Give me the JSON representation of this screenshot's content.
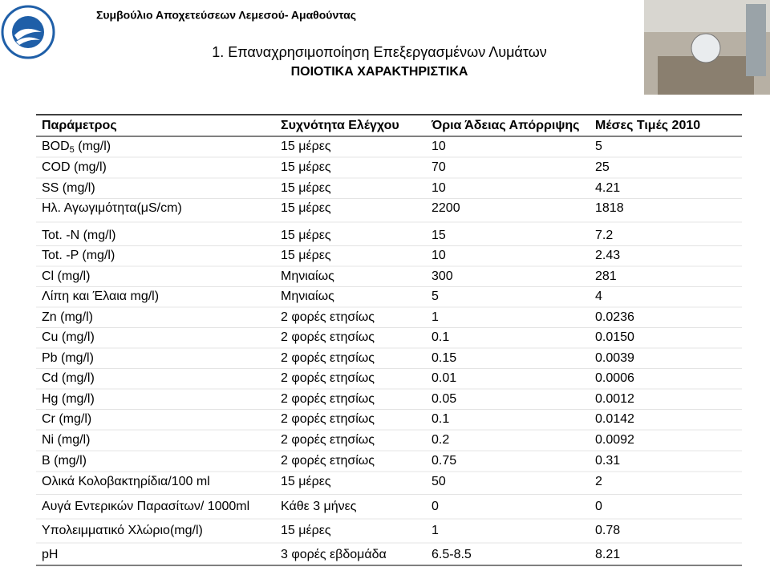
{
  "header": {
    "org": "Συμβούλιο Αποχετεύσεων Λεμεσού- Αμαθούντας",
    "title": "1. Επαναχρησιμοποίηση Επεξεργασμένων Λυμάτων",
    "subtitle": "ΠΟΙΟΤΙΚΑ ΧΑΡΑΚΤΗΡΙΣΤΙΚΑ"
  },
  "table": {
    "columns": [
      "Παράμετρος",
      "Συχνότητα Ελέγχου",
      "Όρια Άδειας Απόρριψης",
      "Μέσες Τιμές 2010"
    ],
    "rows": [
      [
        {
          "text": "BOD",
          "sub": "5",
          "after": " (mg/l)"
        },
        "15 μέρες",
        "10",
        "5"
      ],
      [
        "COD (mg/l)",
        "15 μέρες",
        "70",
        "25"
      ],
      [
        "SS (mg/l)",
        "15 μέρες",
        "10",
        "4.21"
      ],
      [
        "Ηλ. Αγωγιμότητα(μS/cm)",
        "15 μέρες",
        "2200",
        "1818"
      ],
      [
        "Tot. -N (mg/l)",
        "15 μέρες",
        "15",
        "7.2"
      ],
      [
        "Tot. -P (mg/l)",
        "15 μέρες",
        "10",
        "2.43"
      ],
      [
        "Cl (mg/l)",
        "Μηνιαίως",
        "300",
        "281"
      ],
      [
        "Λίπη και Έλαια mg/l)",
        "Μηνιαίως",
        "5",
        "4"
      ],
      [
        "Zn (mg/l)",
        "2 φορές ετησίως",
        "1",
        "0.0236"
      ],
      [
        "Cu (mg/l)",
        "2 φορές ετησίως",
        "0.1",
        "0.0150"
      ],
      [
        "Pb  (mg/l)",
        "2 φορές ετησίως",
        "0.15",
        "0.0039"
      ],
      [
        "Cd  (mg/l)",
        "2 φορές ετησίως",
        "0.01",
        "0.0006"
      ],
      [
        "Hg  (mg/l)",
        "2 φορές ετησίως",
        "0.05",
        "0.0012"
      ],
      [
        "Cr (mg/l)",
        "2 φορές ετησίως",
        "0.1",
        "0.0142"
      ],
      [
        "Ni  (mg/l)",
        "2 φορές ετησίως",
        "0.2",
        "0.0092"
      ],
      [
        "B (mg/l)",
        "2 φορές ετησίως",
        "0.75",
        "0.31"
      ],
      [
        "Ολικά Κολοβακτηρίδια/100 ml",
        "15 μέρες",
        "50",
        "2"
      ],
      [
        "Αυγά Εντερικών Παρασίτων/ 1000ml",
        "Κάθε 3 μήνες",
        "0",
        "0"
      ],
      [
        "Υπολειμματικό Χλώριο(mg/l)",
        "15 μέρες",
        "1",
        "0.78"
      ],
      [
        "pH",
        "3 φορές εβδομάδα",
        "6.5-8.5",
        "8.21"
      ]
    ]
  }
}
